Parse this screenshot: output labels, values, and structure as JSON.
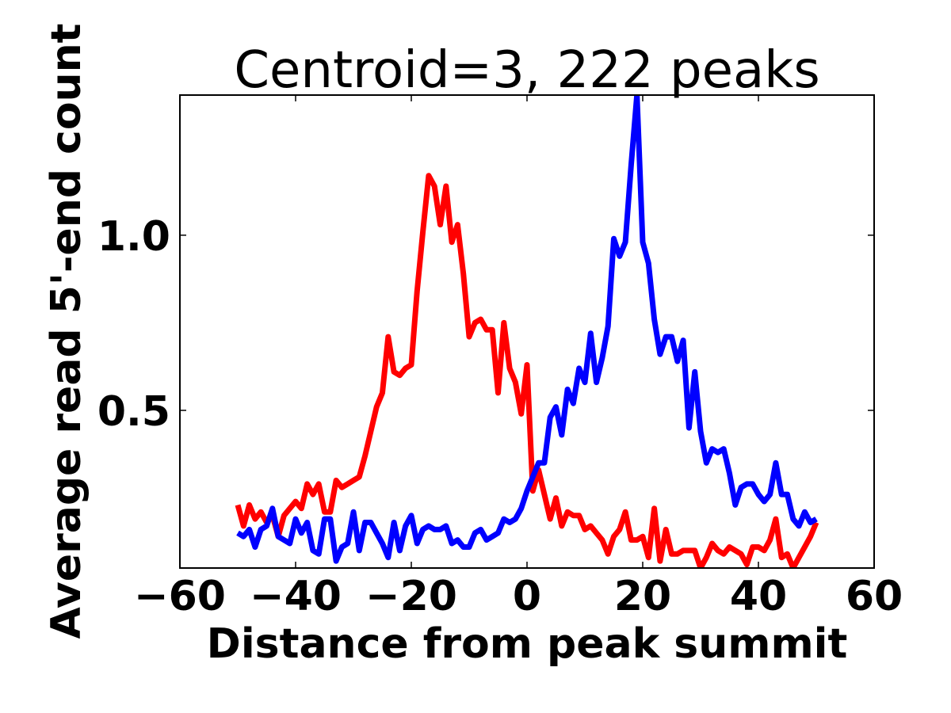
{
  "chart_data": {
    "type": "line",
    "title": "Centroid=3, 222 peaks",
    "xlabel": "Distance from peak summit",
    "ylabel": "Average read 5'-end count",
    "xlim": [
      -60,
      60
    ],
    "ylim": [
      0.05,
      1.4
    ],
    "xticks": [
      "−60",
      "−40",
      "−20",
      "0",
      "20",
      "40",
      "60"
    ],
    "yticks": [
      "0.5",
      "1.0"
    ],
    "grid": false,
    "legend": "none",
    "x": [
      -50,
      -49,
      -48,
      -47,
      -46,
      -45,
      -44,
      -43,
      -42,
      -41,
      -40,
      -39,
      -38,
      -37,
      -36,
      -35,
      -34,
      -33,
      -32,
      -31,
      -30,
      -29,
      -28,
      -27,
      -26,
      -25,
      -24,
      -23,
      -22,
      -21,
      -20,
      -19,
      -18,
      -17,
      -16,
      -15,
      -14,
      -13,
      -12,
      -11,
      -10,
      -9,
      -8,
      -7,
      -6,
      -5,
      -4,
      -3,
      -2,
      -1,
      0,
      1,
      2,
      3,
      4,
      5,
      6,
      7,
      8,
      9,
      10,
      11,
      12,
      13,
      14,
      15,
      16,
      17,
      18,
      19,
      20,
      21,
      22,
      23,
      24,
      25,
      26,
      27,
      28,
      29,
      30,
      31,
      32,
      33,
      34,
      35,
      36,
      37,
      38,
      39,
      40,
      41,
      42,
      43,
      44,
      45,
      46,
      47,
      48,
      49,
      50
    ],
    "series": [
      {
        "color": "#ff0000",
        "values": [
          0.23,
          0.17,
          0.23,
          0.19,
          0.21,
          0.18,
          0.2,
          0.14,
          0.2,
          0.22,
          0.24,
          0.22,
          0.29,
          0.26,
          0.29,
          0.21,
          0.21,
          0.3,
          0.28,
          0.29,
          0.3,
          0.31,
          0.37,
          0.44,
          0.51,
          0.55,
          0.71,
          0.61,
          0.6,
          0.62,
          0.63,
          0.84,
          1.01,
          1.17,
          1.14,
          1.03,
          1.14,
          0.98,
          1.03,
          0.89,
          0.71,
          0.75,
          0.76,
          0.73,
          0.73,
          0.55,
          0.75,
          0.62,
          0.58,
          0.49,
          0.63,
          0.27,
          0.33,
          0.26,
          0.19,
          0.25,
          0.17,
          0.21,
          0.2,
          0.2,
          0.16,
          0.17,
          0.15,
          0.13,
          0.09,
          0.14,
          0.16,
          0.21,
          0.13,
          0.13,
          0.14,
          0.08,
          0.22,
          0.07,
          0.16,
          0.09,
          0.09,
          0.1,
          0.1,
          0.1,
          0.05,
          0.08,
          0.12,
          0.1,
          0.09,
          0.11,
          0.1,
          0.09,
          0.06,
          0.11,
          0.11,
          0.1,
          0.13,
          0.19,
          0.08,
          0.09,
          0.05,
          0.08,
          0.11,
          0.14,
          0.18
        ]
      },
      {
        "color": "#0000ff",
        "values": [
          0.15,
          0.14,
          0.16,
          0.11,
          0.16,
          0.17,
          0.22,
          0.14,
          0.13,
          0.12,
          0.19,
          0.15,
          0.18,
          0.1,
          0.09,
          0.19,
          0.19,
          0.07,
          0.11,
          0.12,
          0.21,
          0.1,
          0.18,
          0.18,
          0.15,
          0.12,
          0.08,
          0.18,
          0.1,
          0.17,
          0.2,
          0.12,
          0.16,
          0.17,
          0.16,
          0.16,
          0.17,
          0.12,
          0.13,
          0.11,
          0.11,
          0.15,
          0.16,
          0.13,
          0.14,
          0.15,
          0.19,
          0.18,
          0.19,
          0.22,
          0.27,
          0.31,
          0.35,
          0.35,
          0.48,
          0.51,
          0.43,
          0.56,
          0.52,
          0.62,
          0.58,
          0.72,
          0.58,
          0.65,
          0.74,
          0.99,
          0.94,
          0.98,
          1.2,
          1.4,
          0.98,
          0.92,
          0.76,
          0.66,
          0.71,
          0.71,
          0.64,
          0.7,
          0.45,
          0.61,
          0.44,
          0.35,
          0.39,
          0.38,
          0.39,
          0.32,
          0.23,
          0.28,
          0.29,
          0.29,
          0.26,
          0.24,
          0.26,
          0.35,
          0.26,
          0.26,
          0.19,
          0.17,
          0.21,
          0.18,
          0.19
        ]
      }
    ]
  }
}
